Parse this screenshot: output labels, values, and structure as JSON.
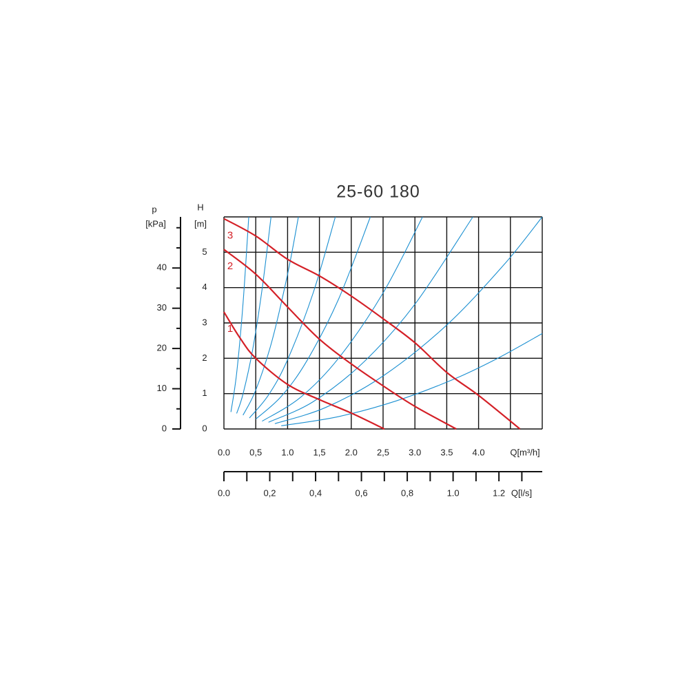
{
  "chart_data": {
    "type": "line",
    "title": "25-60 180",
    "y_label": "H",
    "y_unit": "[m]",
    "y2_label": "p",
    "y2_unit": "[kPa]",
    "x_label": "Q[m³/h]",
    "x2_label": "Q[l/s]",
    "xlim": [
      0,
      5
    ],
    "ylim": [
      0,
      6
    ],
    "xticks": [
      {
        "value": 0,
        "label": "0.0"
      },
      {
        "value": 0.5,
        "label": "0,5"
      },
      {
        "value": 1,
        "label": "1.0"
      },
      {
        "value": 1.5,
        "label": "1,5"
      },
      {
        "value": 2,
        "label": "2.0"
      },
      {
        "value": 2.5,
        "label": "2,5"
      },
      {
        "value": 3,
        "label": "3.0"
      },
      {
        "value": 3.5,
        "label": "3.5"
      },
      {
        "value": 4,
        "label": "4.0"
      }
    ],
    "xgrid": [
      0,
      0.5,
      1,
      1.5,
      2,
      2.5,
      3,
      3.5,
      4,
      4.5,
      5
    ],
    "yticks": [
      0,
      1,
      2,
      3,
      4,
      5
    ],
    "ygrid": [
      0,
      1,
      2,
      3,
      4,
      5,
      6
    ],
    "y2lim": [
      0,
      52.7
    ],
    "y2ticks": [
      0,
      10,
      20,
      30,
      40
    ],
    "y2minorticks": [
      5,
      15,
      25,
      35,
      45,
      50
    ],
    "x2lim": [
      0,
      1.389
    ],
    "x2ticks": [
      {
        "value": 0,
        "label": "0.0"
      },
      {
        "value": 0.2,
        "label": "0,2"
      },
      {
        "value": 0.4,
        "label": "0,4"
      },
      {
        "value": 0.6,
        "label": "0,6"
      },
      {
        "value": 0.8,
        "label": "0,8"
      },
      {
        "value": 1.0,
        "label": "1.0"
      },
      {
        "value": 1.2,
        "label": "1.2"
      }
    ],
    "x2minorticks": [
      0.1,
      0.3,
      0.5,
      0.7,
      0.9,
      1.1,
      1.3
    ],
    "grid": true,
    "series": [
      {
        "color": "#1a8fd1",
        "x": [
          0.11,
          0.2,
          0.3,
          0.39
        ],
        "values": [
          0.48,
          1.58,
          3.55,
          6.0
        ]
      },
      {
        "color": "#1a8fd1",
        "x": [
          0.2,
          0.3,
          0.45,
          0.6,
          0.74
        ],
        "values": [
          0.44,
          0.99,
          2.23,
          3.96,
          6.0
        ]
      },
      {
        "color": "#1a8fd1",
        "x": [
          0.3,
          0.5,
          0.75,
          1.0,
          1.17
        ],
        "values": [
          0.39,
          1.1,
          2.46,
          4.38,
          6.0
        ]
      },
      {
        "color": "#1a8fd1",
        "x": [
          0.4,
          0.7,
          1.0,
          1.4,
          1.75
        ],
        "values": [
          0.31,
          0.96,
          1.96,
          3.84,
          6.0
        ]
      },
      {
        "color": "#1a8fd1",
        "x": [
          0.5,
          0.9,
          1.3,
          1.8,
          2.3
        ],
        "values": [
          0.28,
          0.92,
          1.92,
          3.67,
          6.0
        ]
      },
      {
        "color": "#1a8fd1",
        "x": [
          0.6,
          1.2,
          1.8,
          2.5,
          3.12
        ],
        "values": [
          0.22,
          0.89,
          2.0,
          3.85,
          6.0
        ]
      },
      {
        "color": "#1a8fd1",
        "x": [
          0.7,
          1.4,
          2.2,
          3.0,
          3.91
        ],
        "values": [
          0.19,
          0.77,
          1.9,
          3.53,
          6.0
        ]
      },
      {
        "color": "#1a8fd1",
        "x": [
          0.8,
          1.6,
          2.5,
          3.5,
          4.4,
          5.0
        ],
        "values": [
          0.15,
          0.61,
          1.5,
          2.94,
          4.65,
          6.0
        ]
      },
      {
        "color": "#1a8fd1",
        "x": [
          0.9,
          1.8,
          2.7,
          3.6,
          4.3,
          5.0
        ],
        "values": [
          0.09,
          0.35,
          0.79,
          1.4,
          2.0,
          2.7
        ]
      },
      {
        "name": "1",
        "color": "#d42027",
        "x": [
          0,
          0.25,
          0.5,
          1,
          1.5,
          2,
          2.52
        ],
        "values": [
          3.31,
          2.58,
          2.0,
          1.26,
          0.83,
          0.45,
          0
        ]
      },
      {
        "name": "2",
        "color": "#d42027",
        "x": [
          0,
          0.5,
          1,
          1.5,
          2,
          2.5,
          3,
          3.65
        ],
        "values": [
          5.08,
          4.38,
          3.45,
          2.54,
          1.84,
          1.22,
          0.64,
          0
        ]
      },
      {
        "name": "3",
        "color": "#d42027",
        "x": [
          0,
          0.5,
          1,
          1.5,
          2,
          2.5,
          3,
          3.5,
          4,
          4.65
        ],
        "values": [
          5.95,
          5.46,
          4.8,
          4.33,
          3.76,
          3.12,
          2.44,
          1.6,
          0.95,
          0
        ]
      }
    ]
  }
}
